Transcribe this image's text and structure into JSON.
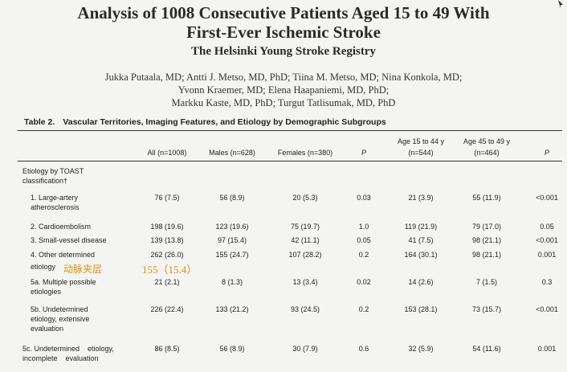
{
  "paper": {
    "title_line1": "Analysis of 1008 Consecutive Patients Aged 15 to 49 With",
    "title_line2": "First-Ever Ischemic Stroke",
    "subtitle": "The Helsinki Young Stroke Registry",
    "authors_line1": "Jukka Putaala, MD; Antti J. Metso, MD, PhD; Tiina M. Metso, MD; Nina Konkola, MD;",
    "authors_line2": "Yvonn Kraemer, MD; Elena Haapaniemi, MD, PhD;",
    "authors_line3": "Markku Kaste, MD, PhD; Turgut Tatlisumak, MD, PhD"
  },
  "table": {
    "label": "Table 2.",
    "caption": "Vascular Territories, Imaging Features, and Etiology by Demographic Subgroups",
    "headers": {
      "all": "All (n=1008)",
      "males": "Males (n=628)",
      "females": "Females (n=380)",
      "p1": "P",
      "age1_line1": "Age 15 to 44 y",
      "age1_line2": "(n=544)",
      "age2_line1": "Age 45 to 49 y",
      "age2_line2": "(n=464)",
      "p2": "P"
    },
    "section": {
      "line1": "Etiology by TOAST",
      "line2": "classification†"
    },
    "rows": [
      {
        "label": [
          "1. Large-artery",
          "atherosclerosis"
        ],
        "all": "76 (7.5)",
        "males": "56 (8.9)",
        "females": "20 (5.3)",
        "p1": "0.03",
        "age1": "21 (3.9)",
        "age2": "55 (11.9)",
        "p2": "<0.001"
      },
      {
        "label": [
          "2. Cardioembolism"
        ],
        "all": "198 (19.6)",
        "males": "123 (19.6)",
        "females": "75 (19.7)",
        "p1": "1.0",
        "age1": "119 (21.9)",
        "age2": "79 (17.0)",
        "p2": "0.05"
      },
      {
        "label": [
          "3. Small-vessel disease"
        ],
        "all": "139 (13.8)",
        "males": "97 (15.4)",
        "females": "42 (11.1)",
        "p1": "0.05",
        "age1": "41 (7.5)",
        "age2": "98 (21.1)",
        "p2": "<0.001"
      },
      {
        "label": [
          "4. Other determined",
          "etiology"
        ],
        "all": "262 (26.0)",
        "males": "155 (24.7)",
        "females": "107 (28.2)",
        "p1": "0.2",
        "age1": "164 (30.1)",
        "age2": "98 (21.1)",
        "p2": "0.001"
      },
      {
        "label": [
          "5a. Multiple possible",
          "etiologies"
        ],
        "all": "21 (2.1)",
        "males": "8 (1.3)",
        "females": "13 (3.4)",
        "p1": "0.02",
        "age1": "14 (2.6)",
        "age2": "7 (1.5)",
        "p2": "0.3"
      },
      {
        "label": [
          "5b. Undetermined",
          "etiology, extensive",
          "evaluation"
        ],
        "all": "226 (22.4)",
        "males": "133 (21.2)",
        "females": "93 (24.5)",
        "p1": "0.2",
        "age1": "153 (28.1)",
        "age2": "73 (15.7)",
        "p2": "<0.001"
      },
      {
        "label": [
          "5c. Undetermined    etiology,",
          "incomplete    evaluation"
        ],
        "all": "86 (8.5)",
        "males": "56 (8.9)",
        "females": "30 (7.9)",
        "p1": "0.6",
        "age1": "32 (5.9)",
        "age2": "54 (11.6)",
        "p2": "0.001"
      }
    ]
  },
  "annotation": {
    "chinese_text": "动脉夹层",
    "value_text": "155（15.4）",
    "color": "#d89410"
  }
}
